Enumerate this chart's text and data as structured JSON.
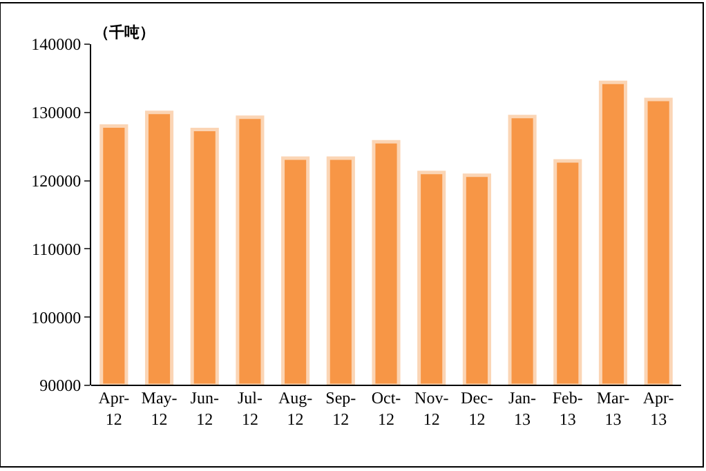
{
  "chart_data": {
    "type": "bar",
    "categories": [
      "Apr-\n12",
      "May-\n12",
      "Jun-\n12",
      "Jul-\n12",
      "Aug-\n12",
      "Sep-\n12",
      "Oct-\n12",
      "Nov-\n12",
      "Dec-\n12",
      "Jan-\n13",
      "Feb-\n13",
      "Mar-\n13",
      "Apr-\n13"
    ],
    "values": [
      128000,
      130000,
      127500,
      129300,
      123300,
      123300,
      125700,
      121200,
      120800,
      129400,
      122900,
      134400,
      131900
    ],
    "color": "#f79646",
    "ylabel": "（千吨）",
    "ylim": [
      90000,
      140000
    ],
    "yticks": [
      90000,
      100000,
      110000,
      120000,
      130000,
      140000
    ]
  }
}
